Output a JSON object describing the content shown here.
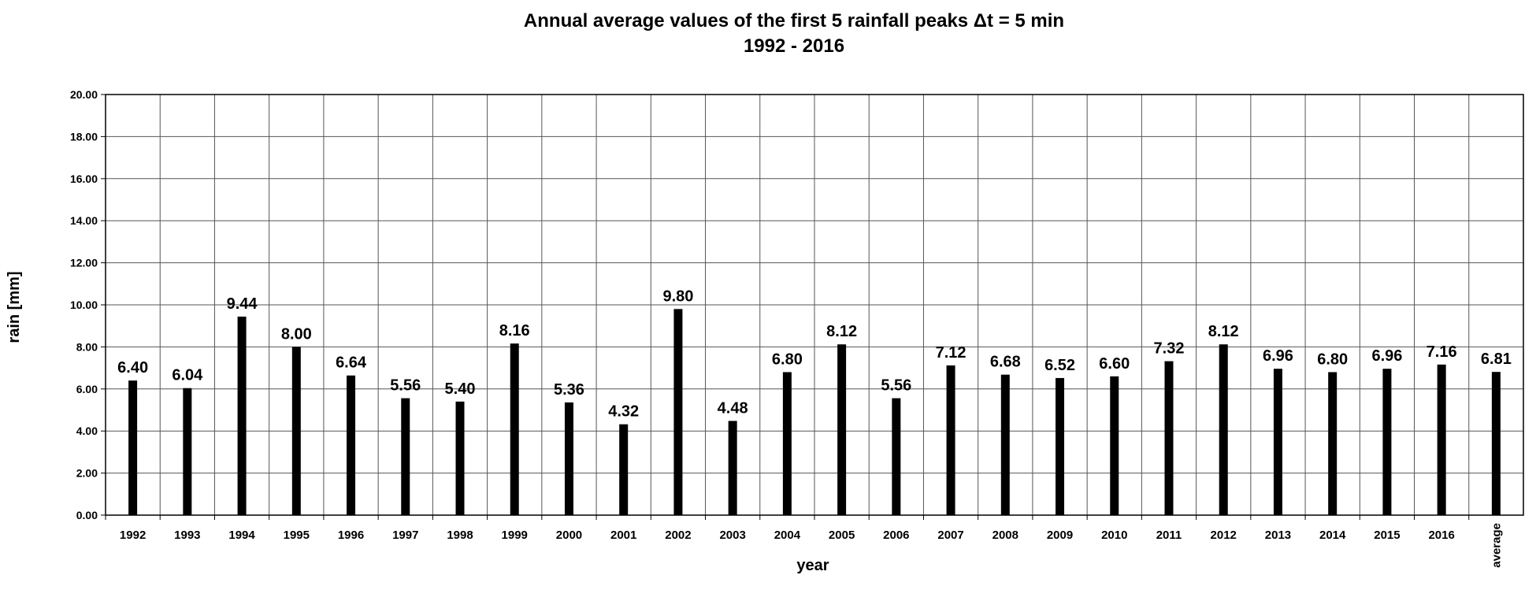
{
  "chart_data": {
    "type": "bar",
    "title": "Annual average values of the first 5 rainfall peaks Δt = 5 min",
    "subtitle": "1992 - 2016",
    "xlabel": "year",
    "ylabel": "rain [mm]",
    "ylim": [
      0,
      20
    ],
    "ytick_step": 2,
    "yticks": [
      "0.00",
      "2.00",
      "4.00",
      "6.00",
      "8.00",
      "10.00",
      "12.00",
      "14.00",
      "16.00",
      "18.00",
      "20.00"
    ],
    "grid": true,
    "categories": [
      "1992",
      "1993",
      "1994",
      "1995",
      "1996",
      "1997",
      "1998",
      "1999",
      "2000",
      "2001",
      "2002",
      "2003",
      "2004",
      "2005",
      "2006",
      "2007",
      "2008",
      "2009",
      "2010",
      "2011",
      "2012",
      "2013",
      "2014",
      "2015",
      "2016",
      "average"
    ],
    "values": [
      6.4,
      6.04,
      9.44,
      8.0,
      6.64,
      5.56,
      5.4,
      8.16,
      5.36,
      4.32,
      9.8,
      4.48,
      6.8,
      8.12,
      5.56,
      7.12,
      6.68,
      6.52,
      6.6,
      7.32,
      8.12,
      6.96,
      6.8,
      6.96,
      7.16,
      6.81
    ],
    "value_labels": [
      "6.40",
      "6.04",
      "9.44",
      "8.00",
      "6.64",
      "5.56",
      "5.40",
      "8.16",
      "5.36",
      "4.32",
      "9.80",
      "4.48",
      "6.80",
      "8.12",
      "5.56",
      "7.12",
      "6.68",
      "6.52",
      "6.60",
      "7.32",
      "8.12",
      "6.96",
      "6.80",
      "6.96",
      "7.16",
      "6.81"
    ],
    "rotated_categories": [
      "average"
    ],
    "colors": {
      "bar": "#000000",
      "grid": "#555555",
      "frame": "#000000",
      "background": "#ffffff"
    }
  }
}
